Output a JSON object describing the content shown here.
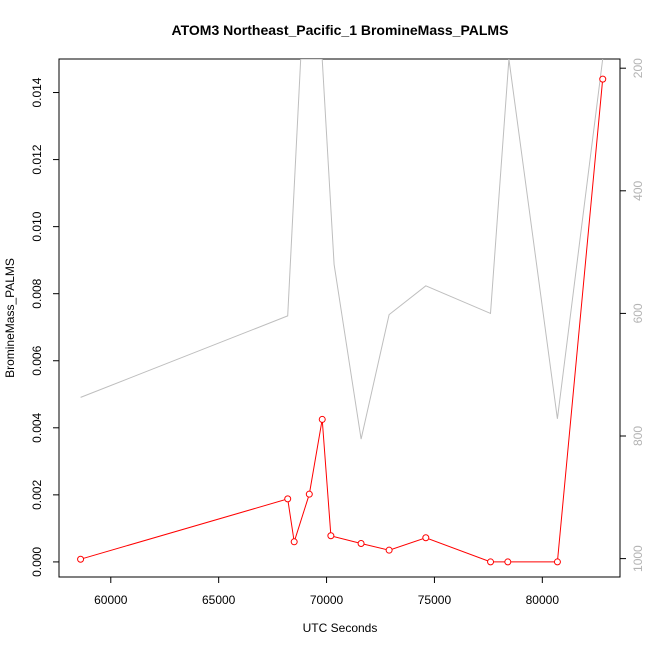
{
  "chart_data": {
    "type": "line",
    "title": "ATOM3 Northeast_Pacific_1 BromineMass_PALMS",
    "xlabel": "UTC Seconds",
    "ylabel": "BromineMass_PALMS",
    "xlim": [
      57600,
      83600
    ],
    "ylim": [
      -0.00045,
      0.015
    ],
    "y2lim": [
      1030,
      185
    ],
    "y2_inverted": true,
    "x_ticks": [
      60000,
      65000,
      70000,
      75000,
      80000
    ],
    "y_ticks": [
      0.0,
      0.002,
      0.004,
      0.006,
      0.008,
      0.01,
      0.012,
      0.014
    ],
    "y_tick_labels": [
      "0.000",
      "0.002",
      "0.004",
      "0.006",
      "0.008",
      "0.010",
      "0.012",
      "0.014"
    ],
    "y2_ticks": [
      200,
      400,
      600,
      800,
      1000
    ],
    "grid": false,
    "legend": "none",
    "series": [
      {
        "axis": "left",
        "color": "#ff0000",
        "marker": "open-circle",
        "x": [
          58600,
          68200,
          68500,
          69200,
          69800,
          70200,
          71600,
          72900,
          74600,
          77600,
          78400,
          80700,
          82800
        ],
        "values": [
          8e-05,
          0.00188,
          0.0006,
          0.00202,
          0.00425,
          0.00078,
          0.00055,
          0.00035,
          0.00072,
          0.0,
          0.0,
          0.0,
          0.0144
        ]
      },
      {
        "axis": "right",
        "color": "#bebebe",
        "marker": "none",
        "x": [
          58600,
          68200,
          68800,
          69800,
          70350,
          71600,
          72900,
          74600,
          77600,
          78450,
          80700,
          82800
        ],
        "values": [
          737,
          604,
          185,
          185,
          520,
          805,
          602,
          555,
          600,
          185,
          772,
          185
        ]
      }
    ]
  }
}
